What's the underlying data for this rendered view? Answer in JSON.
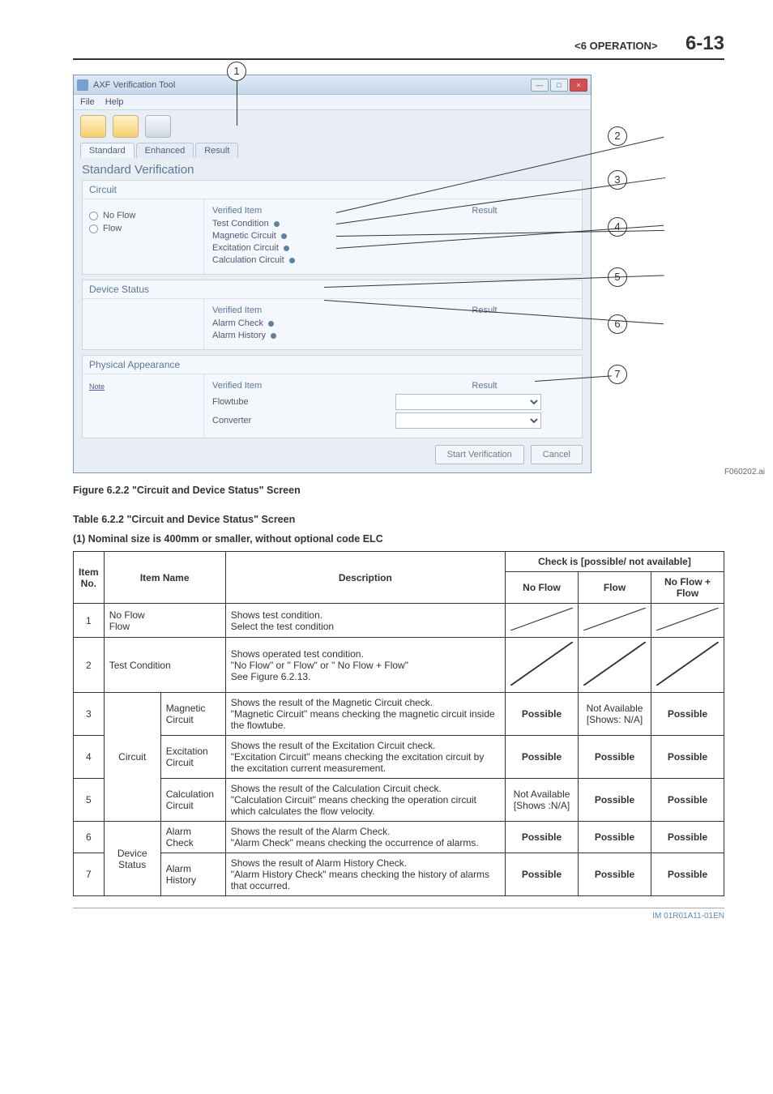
{
  "header": {
    "section": "<6  OPERATION>",
    "page_number": "6-13"
  },
  "screenshot": {
    "callouts": [
      "1",
      "2",
      "3",
      "4",
      "5",
      "6",
      "7"
    ],
    "window_title": "AXF Verification Tool",
    "menu": {
      "file": "File",
      "help": "Help"
    },
    "tabs": {
      "standard": "Standard",
      "enhanced": "Enhanced",
      "result": "Result"
    },
    "section_title": "Standard Verification",
    "circuit_panel": {
      "title": "Circuit",
      "no_flow_label": "No Flow",
      "flow_label": "Flow",
      "col_item": "Verified Item",
      "col_result": "Result",
      "items": {
        "test_condition": "Test Condition",
        "magnetic": "Magnetic Circuit",
        "excitation": "Excitation Circuit",
        "calculation": "Calculation Circuit"
      }
    },
    "device_panel": {
      "title": "Device Status",
      "col_item": "Verified Item",
      "col_result": "Result",
      "items": {
        "alarm_check": "Alarm Check",
        "alarm_history": "Alarm History"
      }
    },
    "appearance_panel": {
      "title": "Physical Appearance",
      "note_link": "Note",
      "col_item": "Verified Item",
      "col_result": "Result",
      "items": {
        "flowtube": "Flowtube",
        "converter": "Converter"
      }
    },
    "buttons": {
      "start": "Start Verification",
      "cancel": "Cancel"
    },
    "fig_ref": "F060202.ai",
    "fig_caption": "Figure 6.2.2 \"Circuit and Device Status\" Screen"
  },
  "table_meta": {
    "title": "Table 6.2.2 \"Circuit and Device Status\" Screen",
    "subtitle": "(1) Nominal size is 400mm or smaller, without optional code ELC",
    "colhead": {
      "item_no": "Item No.",
      "item_name": "Item Name",
      "description": "Description",
      "check_group": "Check is [possible/ not available]",
      "no_flow": "No Flow",
      "flow": "Flow",
      "nf_plus_f": "No Flow + Flow"
    }
  },
  "rows": [
    {
      "no": "1",
      "name_span": "No Flow\nFlow",
      "desc": "Shows test condition.\nSelect the test condition",
      "nf": "__diag__",
      "fl": "__diag__",
      "nff": "__diag__"
    },
    {
      "no": "2",
      "name_span": "Test Condition",
      "desc": "Shows operated test condition.\n\"No Flow\" or \" Flow\" or \" No Flow + Flow\"\nSee Figure 6.2.13.",
      "nf": "__diag__",
      "fl": "__diag__",
      "nff": "__diag__"
    },
    {
      "no": "3",
      "group": "Circuit",
      "name2": "Magnetic Circuit",
      "desc": "Shows the result of the Magnetic Circuit check.\n\"Magnetic Circuit\" means checking the magnetic circuit inside the flowtube.",
      "nf": "Possible",
      "fl": "Not Available\n[Shows: N/A]",
      "nff": "Possible"
    },
    {
      "no": "4",
      "name2": "Excitation Circuit",
      "desc": "Shows the result of the Excitation Circuit check.\n\"Excitation Circuit\" means checking the excitation circuit by the excitation current measurement.",
      "nf": "Possible",
      "fl": "Possible",
      "nff": "Possible"
    },
    {
      "no": "5",
      "name2": "Calculation Circuit",
      "desc": "Shows the result of the Calculation Circuit check.\n\"Calculation Circuit\" means checking the operation circuit which calculates the flow velocity.",
      "nf": "Not Available\n[Shows :N/A]",
      "fl": "Possible",
      "nff": "Possible"
    },
    {
      "no": "6",
      "group": "Device Status",
      "name2": "Alarm Check",
      "desc": "Shows the result of the Alarm Check.\n\"Alarm Check\" means checking the occurrence of alarms.",
      "nf": "Possible",
      "fl": "Possible",
      "nff": "Possible"
    },
    {
      "no": "7",
      "name2": "Alarm History",
      "desc": "Shows the result of Alarm History Check.\n\"Alarm History Check\" means checking the history of alarms that occurred.",
      "nf": "Possible",
      "fl": "Possible",
      "nff": "Possible"
    }
  ],
  "footer": {
    "doc_id": "IM 01R01A11-01EN"
  }
}
